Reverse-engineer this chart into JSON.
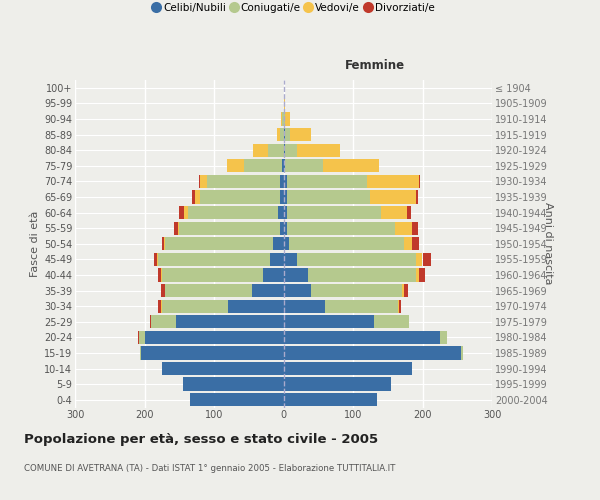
{
  "age_groups": [
    "0-4",
    "5-9",
    "10-14",
    "15-19",
    "20-24",
    "25-29",
    "30-34",
    "35-39",
    "40-44",
    "45-49",
    "50-54",
    "55-59",
    "60-64",
    "65-69",
    "70-74",
    "75-79",
    "80-84",
    "85-89",
    "90-94",
    "95-99",
    "100+"
  ],
  "birth_years": [
    "2000-2004",
    "1995-1999",
    "1990-1994",
    "1985-1989",
    "1980-1984",
    "1975-1979",
    "1970-1974",
    "1965-1969",
    "1960-1964",
    "1955-1959",
    "1950-1954",
    "1945-1949",
    "1940-1944",
    "1935-1939",
    "1930-1934",
    "1925-1929",
    "1920-1924",
    "1915-1919",
    "1910-1914",
    "1905-1909",
    "≤ 1904"
  ],
  "male_celibe": [
    135,
    145,
    175,
    205,
    200,
    155,
    80,
    45,
    30,
    20,
    15,
    5,
    8,
    5,
    5,
    2,
    0,
    0,
    0,
    0,
    0
  ],
  "male_coniugato": [
    0,
    0,
    0,
    2,
    8,
    35,
    95,
    125,
    145,
    160,
    155,
    145,
    130,
    115,
    105,
    55,
    22,
    5,
    2,
    0,
    0
  ],
  "male_vedovo": [
    0,
    0,
    0,
    0,
    0,
    0,
    1,
    1,
    1,
    2,
    2,
    2,
    5,
    8,
    10,
    25,
    22,
    5,
    1,
    0,
    0
  ],
  "male_divorziato": [
    0,
    0,
    0,
    0,
    1,
    2,
    4,
    5,
    5,
    5,
    3,
    6,
    8,
    3,
    2,
    0,
    0,
    0,
    0,
    0,
    0
  ],
  "female_nubile": [
    135,
    155,
    185,
    255,
    225,
    130,
    60,
    40,
    35,
    20,
    8,
    5,
    5,
    5,
    5,
    2,
    2,
    2,
    0,
    0,
    0
  ],
  "female_coniugata": [
    0,
    0,
    0,
    3,
    10,
    50,
    105,
    130,
    155,
    170,
    165,
    155,
    135,
    120,
    115,
    55,
    18,
    8,
    2,
    0,
    0
  ],
  "female_vedova": [
    0,
    0,
    0,
    0,
    0,
    0,
    1,
    3,
    5,
    10,
    12,
    25,
    38,
    65,
    75,
    80,
    62,
    30,
    8,
    2,
    0
  ],
  "female_divorziata": [
    0,
    0,
    0,
    0,
    0,
    1,
    3,
    6,
    8,
    12,
    10,
    8,
    5,
    3,
    2,
    0,
    0,
    0,
    0,
    0,
    0
  ],
  "color_celibe": "#3A6EA5",
  "color_coniugato": "#B5C98E",
  "color_vedovo": "#F5C34B",
  "color_divorziato": "#C0392B",
  "xlim": 300,
  "title": "Popolazione per età, sesso e stato civile - 2005",
  "subtitle": "COMUNE DI AVETRANA (TA) - Dati ISTAT 1° gennaio 2005 - Elaborazione TUTTITALIA.IT",
  "ylabel_left": "Fasce di età",
  "ylabel_right": "Anni di nascita",
  "label_femmine": "Femmine",
  "legend_labels": [
    "Celibi/Nubili",
    "Coniugati/e",
    "Vedovi/e",
    "Divorziati/e"
  ],
  "bg_color": "#eeeeea"
}
